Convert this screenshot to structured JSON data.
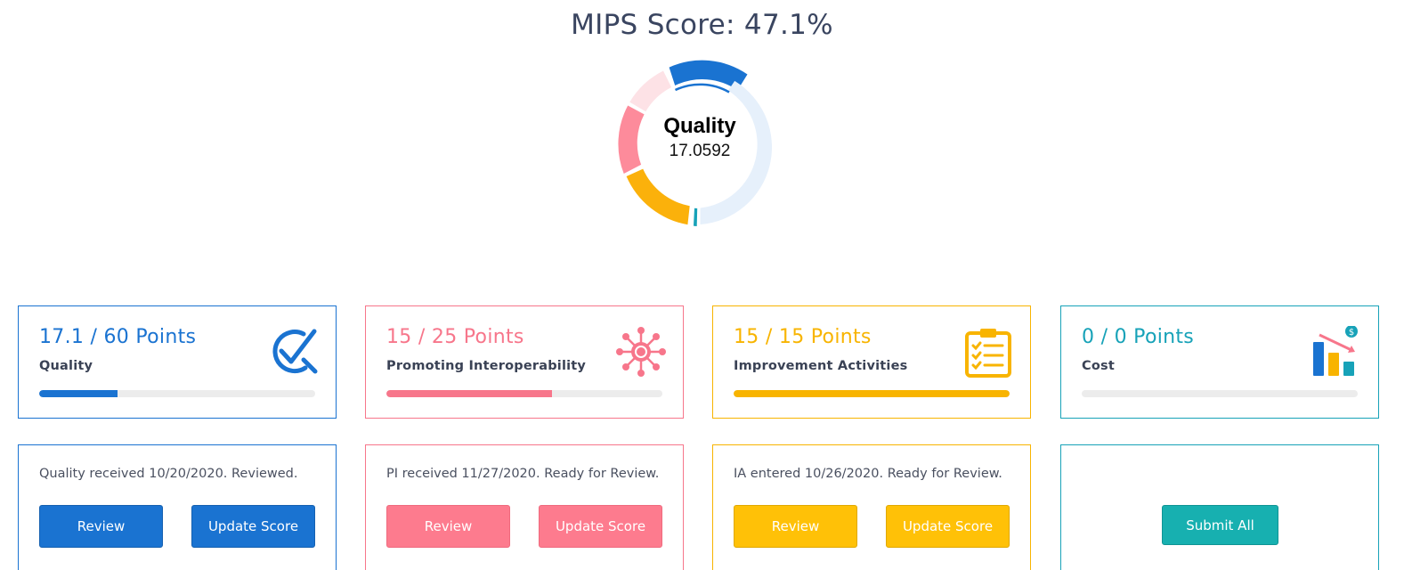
{
  "header": {
    "title": "MIPS Score: 47.1%"
  },
  "donut": {
    "label": "Quality",
    "value": "17.0592",
    "segments": [
      {
        "name": "Quality",
        "fraction": 0.284,
        "color": "#1a73d1"
      },
      {
        "name": "Promoting Interoperability",
        "fraction": 0.6,
        "color": "#fd8b9b"
      },
      {
        "name": "Improvement Activities",
        "fraction": 1.0,
        "color": "#fbb10b"
      },
      {
        "name": "Cost",
        "fraction": 0.0,
        "color": "#17a2b8"
      }
    ]
  },
  "cards": [
    {
      "points": "17.1 / 60 Points",
      "category": "Quality",
      "progress": 0.284,
      "color": "#1a73d1",
      "icon": "quality-check-icon",
      "status": "Quality received 10/20/2020. Reviewed.",
      "review_label": "Review",
      "update_label": "Update Score"
    },
    {
      "points": "15 / 25 Points",
      "category": "Promoting Interoperability",
      "progress": 0.6,
      "color": "#f7768b",
      "icon": "interoperability-network-icon",
      "status": "PI received 11/27/2020. Ready for Review.",
      "review_label": "Review",
      "update_label": "Update Score"
    },
    {
      "points": "15 / 15 Points",
      "category": "Improvement Activities",
      "progress": 1.0,
      "color": "#f8b400",
      "icon": "clipboard-checklist-icon",
      "status": "IA entered 10/26/2020. Ready for Review.",
      "review_label": "Review",
      "update_label": "Update Score"
    },
    {
      "points": "0 / 0 Points",
      "category": "Cost",
      "progress": 0.0,
      "color": "#17a2b8",
      "icon": "cost-chart-icon",
      "submit_label": "Submit All"
    }
  ]
}
